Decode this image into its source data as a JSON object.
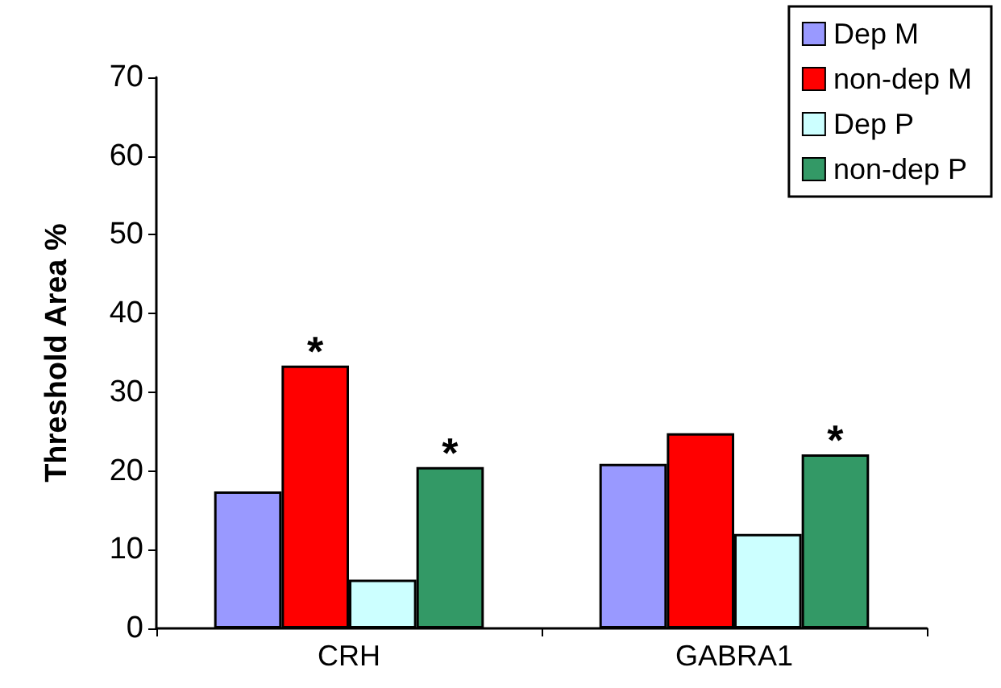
{
  "chart_data": {
    "type": "bar",
    "ylabel": "Threshold Area %",
    "categories": [
      "CRH",
      "GABRA1"
    ],
    "series": [
      {
        "name": "Dep M",
        "color": "#9999ff",
        "values": [
          17.4,
          20.9
        ]
      },
      {
        "name": "non-dep M",
        "color": "#ff0000",
        "values": [
          33.4,
          24.8
        ]
      },
      {
        "name": "Dep P",
        "color": "#ccffff",
        "values": [
          6.2,
          12
        ]
      },
      {
        "name": "non-dep P",
        "color": "#339966",
        "values": [
          20.5,
          22.1
        ]
      }
    ],
    "ylim": [
      0,
      70
    ],
    "yticks": [
      0,
      10,
      20,
      30,
      40,
      50,
      60,
      70
    ],
    "grid": false,
    "legend": "top right",
    "annotations": [
      {
        "text": "*",
        "x": "CRH",
        "y": 33.4
      },
      {
        "text": "*",
        "x": "CRH",
        "y": 20.5
      },
      {
        "text": "*",
        "x": "GABRA1",
        "y": 22.1
      }
    ]
  }
}
